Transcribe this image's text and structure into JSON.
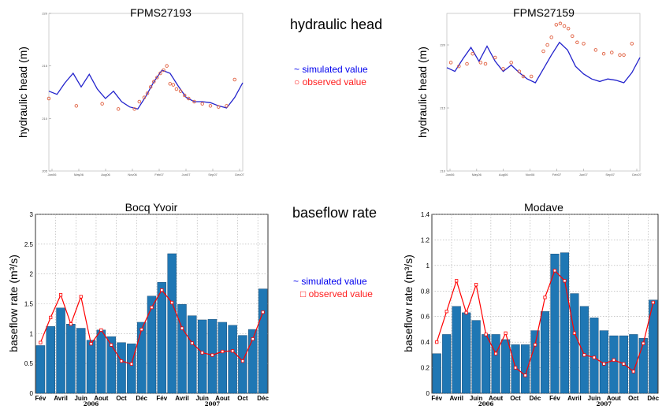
{
  "headings": {
    "hydraulic": "hydraulic head",
    "baseflow": "baseflow rate"
  },
  "legend_head": {
    "simulated": "~ simulated value",
    "observed": "○ observed value"
  },
  "legend_flow": {
    "simulated": "~ simulated value",
    "observed": "□ observed value"
  },
  "colors": {
    "simulated_line": "#2222cc",
    "observed_marker": "#e06040",
    "bar": "#1f77b4",
    "flow_line": "#ff0000"
  },
  "chart_data": [
    {
      "id": "head1",
      "type": "line",
      "title": "FPMS27193",
      "ylabel": "hydraulic head (m)",
      "yticks": [
        "205",
        "210",
        "215",
        "220"
      ],
      "ylim": [
        205,
        220
      ],
      "xticks": [
        "Jan06",
        "May06",
        "Aug06",
        "Nov06",
        "Feb07",
        "Jun07",
        "Sep07",
        "Dec07"
      ],
      "xlim": [
        0,
        24
      ],
      "series": [
        {
          "name": "simulated value",
          "style": "line",
          "x": [
            0,
            1,
            2,
            3,
            4,
            5,
            6,
            7,
            8,
            9,
            10,
            11,
            12,
            13,
            14,
            15,
            16,
            17,
            18,
            19,
            20,
            21,
            22,
            23,
            24
          ],
          "y": [
            212.6,
            212.3,
            213.4,
            214.3,
            213.0,
            214.2,
            212.8,
            211.9,
            212.6,
            211.6,
            211.1,
            210.9,
            212.1,
            213.5,
            214.6,
            214.3,
            213.1,
            212.0,
            211.6,
            211.6,
            211.5,
            211.2,
            211.0,
            212.0,
            213.4
          ]
        },
        {
          "name": "observed value",
          "style": "circle",
          "x": [
            0,
            3.4,
            6.6,
            8.6,
            10.6,
            11.2,
            11.8,
            12.2,
            12.6,
            13.0,
            13.4,
            13.8,
            14.2,
            14.6,
            15.0,
            15.4,
            15.8,
            16.3,
            16.8,
            17.3,
            18.0,
            19.0,
            20.0,
            21.0,
            22.0,
            23.0
          ],
          "y": [
            211.9,
            211.2,
            211.4,
            210.9,
            210.9,
            211.6,
            212.0,
            212.4,
            213.0,
            213.5,
            213.9,
            214.3,
            214.6,
            215.0,
            213.3,
            213.2,
            212.8,
            212.6,
            212.2,
            211.9,
            211.6,
            211.4,
            211.2,
            211.1,
            211.2,
            213.7
          ]
        }
      ]
    },
    {
      "id": "head2",
      "type": "line",
      "title": "FPMS27159",
      "ylabel": "hydraulic head (m)",
      "yticks": [
        "210",
        "215",
        "220"
      ],
      "ylim": [
        210,
        222.5
      ],
      "xticks": [
        "Jan06",
        "May06",
        "Aug06",
        "Nov06",
        "Feb07",
        "Jun07",
        "Sep07",
        "Dec07"
      ],
      "xlim": [
        0,
        24
      ],
      "series": [
        {
          "name": "simulated value",
          "style": "line",
          "x": [
            0,
            1,
            2,
            3,
            4,
            5,
            6,
            7,
            8,
            9,
            10,
            11,
            12,
            13,
            14,
            15,
            16,
            17,
            18,
            19,
            20,
            21,
            22,
            23,
            24
          ],
          "y": [
            218.2,
            217.9,
            218.9,
            219.8,
            218.7,
            219.9,
            218.7,
            217.9,
            218.4,
            217.8,
            217.3,
            217.0,
            218.1,
            219.2,
            220.2,
            219.6,
            218.3,
            217.7,
            217.3,
            217.1,
            217.3,
            217.2,
            217.0,
            217.8,
            219.0
          ]
        },
        {
          "name": "observed value",
          "style": "circle",
          "x": [
            0.5,
            1.5,
            2.5,
            3.2,
            4.2,
            4.8,
            6.0,
            7.0,
            8.0,
            9.0,
            9.5,
            10.5,
            12.0,
            12.5,
            13.0,
            13.6,
            14.1,
            14.6,
            15.1,
            15.6,
            16.2,
            17.0,
            18.5,
            19.5,
            20.5,
            21.5,
            22.0,
            23.0
          ],
          "y": [
            218.6,
            218.3,
            218.5,
            219.3,
            218.6,
            218.5,
            219.0,
            218.1,
            218.6,
            217.9,
            217.5,
            217.5,
            219.5,
            220.0,
            220.6,
            221.6,
            221.7,
            221.5,
            221.3,
            220.7,
            220.2,
            220.1,
            219.6,
            219.3,
            219.4,
            219.2,
            219.2,
            220.1
          ]
        }
      ]
    },
    {
      "id": "flow1",
      "type": "bar",
      "title": "Bocq Yvoir",
      "ylabel": "baseflow rate (m³/s)",
      "yticks": [
        "0",
        "0.5",
        "1",
        "1.5",
        "2",
        "2.5",
        "3"
      ],
      "ylim": [
        0,
        3
      ],
      "month_labels": [
        "Fév",
        "Avril",
        "Juin",
        "Aout",
        "Oct",
        "Déc",
        "Fév",
        "Avril",
        "Juin",
        "Aout",
        "Oct",
        "Déc"
      ],
      "years": [
        "2006",
        "2007"
      ],
      "values": [
        0.8,
        1.12,
        1.43,
        1.16,
        1.09,
        0.89,
        1.06,
        0.95,
        0.85,
        0.83,
        1.19,
        1.63,
        1.86,
        2.34,
        1.49,
        1.3,
        1.23,
        1.24,
        1.19,
        1.14,
        0.97,
        1.07,
        1.75
      ],
      "observed": [
        0.85,
        1.27,
        1.65,
        1.16,
        1.62,
        0.83,
        1.06,
        0.81,
        0.54,
        0.49,
        1.07,
        1.44,
        1.73,
        1.52,
        1.09,
        0.84,
        0.68,
        0.64,
        0.7,
        0.71,
        0.54,
        0.91,
        1.36
      ]
    },
    {
      "id": "flow2",
      "type": "bar",
      "title": "Modave",
      "ylabel": "baseflow rate (m³/s)",
      "yticks": [
        "0",
        "0.2",
        "0.4",
        "0.6",
        "0.8",
        "1",
        "1.2",
        "1.4"
      ],
      "ylim": [
        0,
        1.4
      ],
      "month_labels": [
        "Fév",
        "Avril",
        "Juin",
        "Aout",
        "Oct",
        "Déc",
        "Fév",
        "Avril",
        "Juin",
        "Aout",
        "Oct",
        "Déc"
      ],
      "years": [
        "2006",
        "2007"
      ],
      "values": [
        0.31,
        0.46,
        0.68,
        0.63,
        0.57,
        0.46,
        0.46,
        0.42,
        0.38,
        0.38,
        0.49,
        0.64,
        1.09,
        1.1,
        0.78,
        0.68,
        0.59,
        0.49,
        0.45,
        0.45,
        0.46,
        0.43,
        0.73
      ],
      "observed": [
        0.4,
        0.64,
        0.88,
        0.63,
        0.85,
        0.46,
        0.31,
        0.47,
        0.2,
        0.14,
        0.38,
        0.75,
        0.96,
        0.88,
        0.47,
        0.3,
        0.28,
        0.23,
        0.26,
        0.23,
        0.17,
        0.39,
        0.71
      ]
    }
  ]
}
